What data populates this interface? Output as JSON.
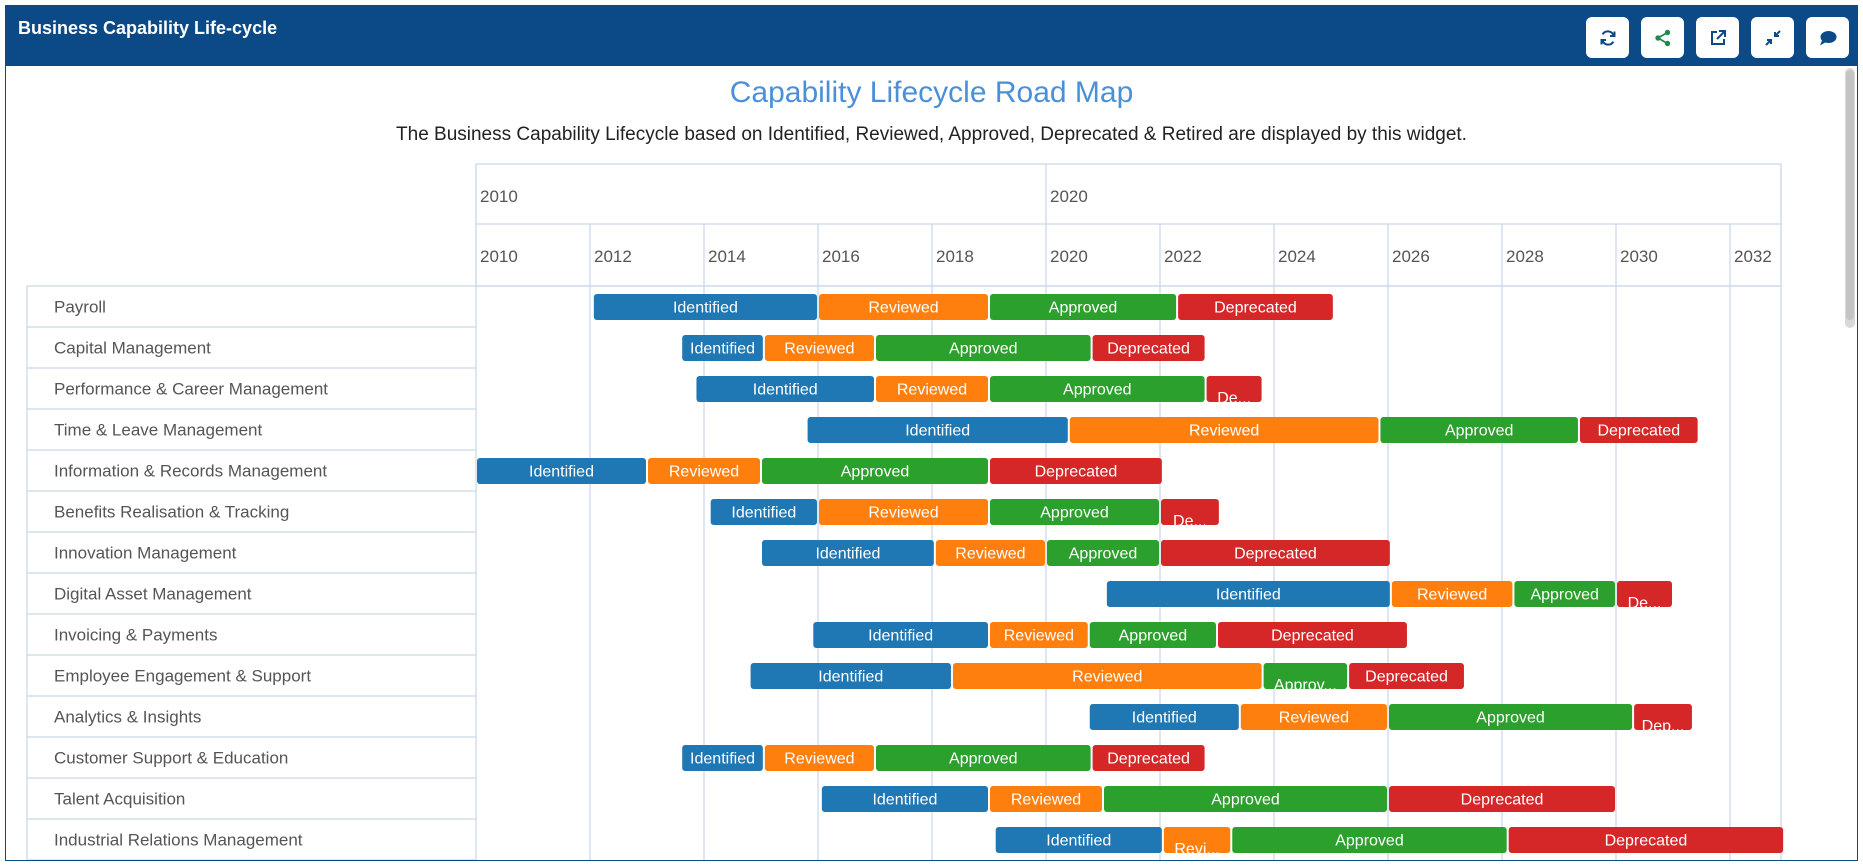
{
  "widget": {
    "title": "Business Capability Life-cycle"
  },
  "toolbar": [
    {
      "name": "refresh-button",
      "icon": "refresh-icon"
    },
    {
      "name": "share-button",
      "icon": "share-icon"
    },
    {
      "name": "open-external-button",
      "icon": "external-link-icon"
    },
    {
      "name": "collapse-button",
      "icon": "collapse-icon"
    },
    {
      "name": "comment-button",
      "icon": "comment-icon"
    }
  ],
  "colors": {
    "header": "#0b4a86",
    "title": "#4a90d9",
    "Identified": "#1f77b4",
    "Reviewed": "#ff7f0e",
    "Approved": "#2ca02c",
    "Deprecated": "#d62728",
    "grid": "#c9d6e8"
  },
  "chart_data": {
    "type": "gantt",
    "title": "Capability Lifecycle Road Map",
    "subtitle": "The Business Capability Lifecycle based on Identified, Reviewed, Approved, Deprecated & Retired are displayed by this widget.",
    "decade_ticks": [
      "2010",
      "2020"
    ],
    "year_ticks": [
      "2010",
      "2012",
      "2014",
      "2016",
      "2018",
      "2020",
      "2022",
      "2024",
      "2026",
      "2028",
      "2030",
      "2032"
    ],
    "x_range": [
      2010,
      2032.95
    ],
    "rows": [
      {
        "name": "Payroll",
        "phases": [
          {
            "label": "Identified",
            "start": 2012.05,
            "end": 2016.0
          },
          {
            "label": "Reviewed",
            "start": 2016.0,
            "end": 2019.0
          },
          {
            "label": "Approved",
            "start": 2019.0,
            "end": 2022.3
          },
          {
            "label": "Deprecated",
            "start": 2022.3,
            "end": 2025.05
          }
        ]
      },
      {
        "name": "Capital Management",
        "phases": [
          {
            "label": "Identified",
            "start": 2013.6,
            "end": 2015.05
          },
          {
            "label": "Reviewed",
            "start": 2015.05,
            "end": 2017.0
          },
          {
            "label": "Approved",
            "start": 2017.0,
            "end": 2020.8
          },
          {
            "label": "Deprecated",
            "start": 2020.8,
            "end": 2022.8
          }
        ]
      },
      {
        "name": "Performance & Career Management",
        "phases": [
          {
            "label": "Identified",
            "start": 2013.85,
            "end": 2017.0
          },
          {
            "label": "Reviewed",
            "start": 2017.0,
            "end": 2019.0
          },
          {
            "label": "Approved",
            "start": 2019.0,
            "end": 2022.8
          },
          {
            "label": "De...",
            "start": 2022.8,
            "end": 2023.8
          }
        ]
      },
      {
        "name": "Time & Leave Management",
        "phases": [
          {
            "label": "Identified",
            "start": 2015.8,
            "end": 2020.4
          },
          {
            "label": "Reviewed",
            "start": 2020.4,
            "end": 2025.85
          },
          {
            "label": "Approved",
            "start": 2025.85,
            "end": 2029.35
          },
          {
            "label": "Deprecated",
            "start": 2029.35,
            "end": 2031.45
          }
        ]
      },
      {
        "name": "Information & Records Management",
        "phases": [
          {
            "label": "Identified",
            "start": 2010.0,
            "end": 2013.0
          },
          {
            "label": "Reviewed",
            "start": 2013.0,
            "end": 2015.0
          },
          {
            "label": "Approved",
            "start": 2015.0,
            "end": 2019.0
          },
          {
            "label": "Deprecated",
            "start": 2019.0,
            "end": 2022.05
          }
        ]
      },
      {
        "name": "Benefits Realisation & Tracking",
        "phases": [
          {
            "label": "Identified",
            "start": 2014.1,
            "end": 2016.0
          },
          {
            "label": "Reviewed",
            "start": 2016.0,
            "end": 2019.0
          },
          {
            "label": "Approved",
            "start": 2019.0,
            "end": 2022.0
          },
          {
            "label": "De...",
            "start": 2022.0,
            "end": 2023.05
          }
        ]
      },
      {
        "name": "Innovation Management",
        "phases": [
          {
            "label": "Identified",
            "start": 2015.0,
            "end": 2018.05
          },
          {
            "label": "Reviewed",
            "start": 2018.05,
            "end": 2020.0
          },
          {
            "label": "Approved",
            "start": 2020.0,
            "end": 2022.0
          },
          {
            "label": "Deprecated",
            "start": 2022.0,
            "end": 2026.05
          }
        ]
      },
      {
        "name": "Digital Asset Management",
        "phases": [
          {
            "label": "Identified",
            "start": 2021.05,
            "end": 2026.05
          },
          {
            "label": "Reviewed",
            "start": 2026.05,
            "end": 2028.2
          },
          {
            "label": "Approved",
            "start": 2028.2,
            "end": 2030.0
          },
          {
            "label": "De...",
            "start": 2030.0,
            "end": 2031.0
          }
        ]
      },
      {
        "name": "Invoicing & Payments",
        "phases": [
          {
            "label": "Identified",
            "start": 2015.9,
            "end": 2019.0
          },
          {
            "label": "Reviewed",
            "start": 2019.0,
            "end": 2020.75
          },
          {
            "label": "Approved",
            "start": 2020.75,
            "end": 2023.0
          },
          {
            "label": "Deprecated",
            "start": 2023.0,
            "end": 2026.35
          }
        ]
      },
      {
        "name": "Employee Engagement & Support",
        "phases": [
          {
            "label": "Identified",
            "start": 2014.8,
            "end": 2018.35
          },
          {
            "label": "Reviewed",
            "start": 2018.35,
            "end": 2023.8
          },
          {
            "label": "Approv...",
            "start": 2023.8,
            "end": 2025.3
          },
          {
            "label": "Deprecated",
            "start": 2025.3,
            "end": 2027.35
          }
        ]
      },
      {
        "name": "Analytics & Insights",
        "phases": [
          {
            "label": "Identified",
            "start": 2020.75,
            "end": 2023.4
          },
          {
            "label": "Reviewed",
            "start": 2023.4,
            "end": 2026.0
          },
          {
            "label": "Approved",
            "start": 2026.0,
            "end": 2030.3
          },
          {
            "label": "Dep...",
            "start": 2030.3,
            "end": 2031.35
          }
        ]
      },
      {
        "name": "Customer Support & Education",
        "phases": [
          {
            "label": "Identified",
            "start": 2013.6,
            "end": 2015.05
          },
          {
            "label": "Reviewed",
            "start": 2015.05,
            "end": 2017.0
          },
          {
            "label": "Approved",
            "start": 2017.0,
            "end": 2020.8
          },
          {
            "label": "Deprecated",
            "start": 2020.8,
            "end": 2022.8
          }
        ]
      },
      {
        "name": "Talent Acquisition",
        "phases": [
          {
            "label": "Identified",
            "start": 2016.05,
            "end": 2019.0
          },
          {
            "label": "Reviewed",
            "start": 2019.0,
            "end": 2021.0
          },
          {
            "label": "Approved",
            "start": 2021.0,
            "end": 2026.0
          },
          {
            "label": "Deprecated",
            "start": 2026.0,
            "end": 2030.0
          }
        ]
      },
      {
        "name": "Industrial Relations Management",
        "phases": [
          {
            "label": "Identified",
            "start": 2019.1,
            "end": 2022.05
          },
          {
            "label": "Revi...",
            "start": 2022.05,
            "end": 2023.25
          },
          {
            "label": "Approved",
            "start": 2023.25,
            "end": 2028.1
          },
          {
            "label": "Deprecated",
            "start": 2028.1,
            "end": 2032.95
          }
        ]
      }
    ]
  }
}
